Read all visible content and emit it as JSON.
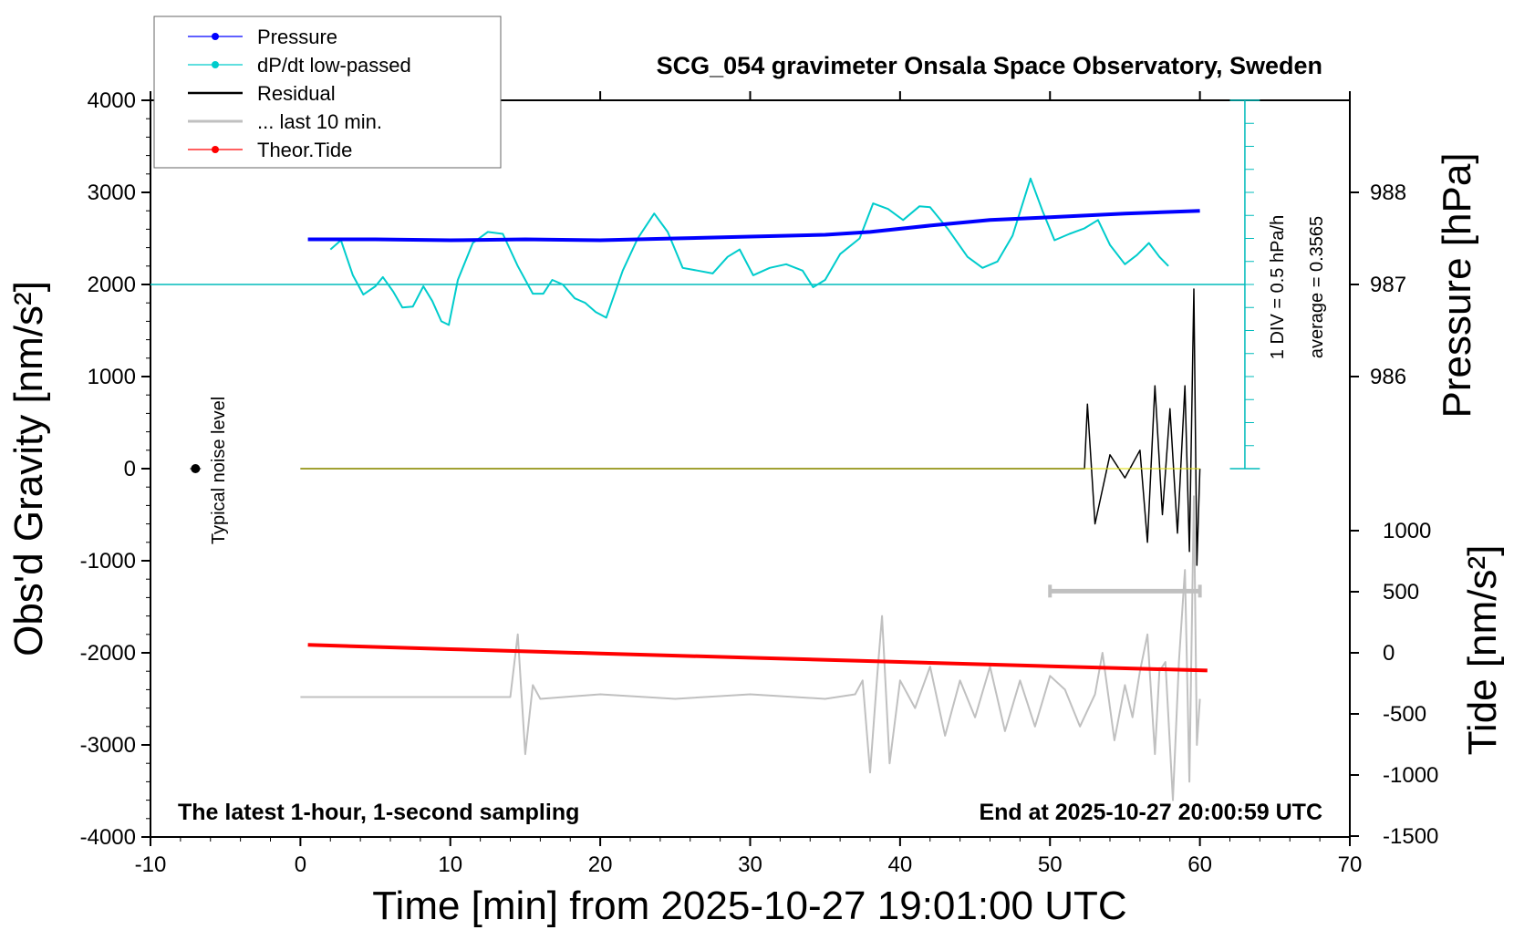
{
  "chart_data": {
    "type": "line",
    "title": "SCG_054 gravimeter Onsala Space Observatory, Sweden",
    "xlabel": "Time [min] from 2025-10-27 19:01:00 UTC",
    "ylabel_left": "Obs'd Gravity [nm/s²]",
    "ylabel_right_top": "Pressure [hPa]",
    "ylabel_right_bottom": "Tide [nm/s²]",
    "xlim": [
      -10,
      70
    ],
    "ylim": [
      -4000,
      4000
    ],
    "x_ticks": [
      "-10",
      "0",
      "10",
      "20",
      "30",
      "40",
      "50",
      "60",
      "70"
    ],
    "y_ticks": [
      "4000",
      "3000",
      "2000",
      "1000",
      "0",
      "-1000",
      "-2000",
      "-3000",
      "-4000"
    ],
    "pressure_ticks": [
      "988",
      "987",
      "986"
    ],
    "tide_ticks": [
      "1000",
      "500",
      "0",
      "-500",
      "-1000",
      "-1500"
    ],
    "annotations": {
      "left_bottom": "The latest 1-hour, 1-second sampling",
      "right_bottom": "End at 2025-10-27 20:00:59 UTC",
      "noise": "Typical noise level",
      "div": "1 DIV = 0.5 hPa/h",
      "average": "average = 0.3565"
    },
    "legend": [
      {
        "name": "Pressure",
        "color": "#0000ff",
        "marker": true
      },
      {
        "name": "dP/dt low-passed",
        "color": "#00cccc",
        "marker": true
      },
      {
        "name": "Residual",
        "color": "#000000",
        "marker": false
      },
      {
        "name": "... last 10 min.",
        "color": "#c0c0c0",
        "marker": false
      },
      {
        "name": "Theor.Tide",
        "color": "#ff0000",
        "marker": true
      }
    ],
    "series": [
      {
        "name": "Pressure",
        "color": "#0000ff",
        "unit": "hPa",
        "x": [
          0.5,
          5,
          10,
          15,
          20,
          25,
          30,
          35,
          38,
          42,
          46,
          50,
          55,
          60
        ],
        "y": [
          987.49,
          987.49,
          987.48,
          987.49,
          987.48,
          987.5,
          987.52,
          987.54,
          987.57,
          987.64,
          987.7,
          987.73,
          987.77,
          987.8
        ]
      },
      {
        "name": "dP/dt low-passed",
        "color": "#00cccc",
        "unit": "nm/s² plot units",
        "x": [
          2,
          2.7,
          3.5,
          4.2,
          5,
          5.5,
          6.2,
          6.8,
          7.5,
          8.2,
          8.8,
          9.4,
          9.9,
          10.5,
          11.5,
          12.5,
          13.5,
          14.5,
          15.5,
          16.2,
          16.8,
          17.5,
          18.3,
          19,
          19.7,
          20.4,
          21.5,
          22.5,
          23.6,
          24.5,
          25.5,
          26.5,
          27.5,
          28.5,
          29.3,
          30.2,
          31.3,
          32.4,
          33.5,
          34.2,
          35,
          36,
          37.3,
          38.2,
          39.2,
          40.2,
          41.3,
          42,
          43.2,
          44.5,
          45.5,
          46.5,
          47.5,
          48.7,
          49.5,
          50.3,
          51.3,
          52.3,
          53.2,
          54,
          55,
          55.8,
          56.6,
          57.3,
          57.9
        ],
        "y": [
          2380,
          2480,
          2100,
          1890,
          1980,
          2080,
          1920,
          1750,
          1760,
          1980,
          1820,
          1600,
          1560,
          2050,
          2450,
          2570,
          2550,
          2200,
          1900,
          1900,
          2050,
          2000,
          1850,
          1800,
          1700,
          1640,
          2150,
          2500,
          2770,
          2570,
          2180,
          2150,
          2120,
          2300,
          2380,
          2100,
          2180,
          2220,
          2150,
          1970,
          2050,
          2330,
          2500,
          2880,
          2820,
          2700,
          2850,
          2840,
          2600,
          2300,
          2180,
          2250,
          2530,
          3150,
          2800,
          2480,
          2550,
          2610,
          2700,
          2430,
          2220,
          2320,
          2450,
          2300,
          2200
        ]
      },
      {
        "name": "Residual",
        "color": "#000000",
        "unit": "nm/s²",
        "x": [
          0,
          52.3,
          52.5,
          53,
          54,
          55,
          56,
          56.5,
          57,
          57.5,
          58,
          58.5,
          59,
          59.3,
          59.6,
          59.8,
          60
        ],
        "y": [
          0,
          0,
          700,
          -600,
          150,
          -100,
          200,
          -800,
          900,
          -500,
          650,
          -700,
          900,
          -900,
          1950,
          -1050,
          0
        ]
      },
      {
        "name": "... last 10 min.",
        "color": "#c0c0c0",
        "unit": "nm/s² plot units",
        "x": [
          0,
          13.5,
          14,
          14.5,
          15,
          15.5,
          16,
          20,
          25,
          30,
          35,
          37,
          37.5,
          38,
          38.5,
          38.8,
          39.3,
          40,
          41,
          42,
          43,
          44,
          45,
          46,
          47,
          48,
          49,
          50,
          51,
          52,
          53,
          53.5,
          54.3,
          55,
          55.5,
          56,
          56.5,
          57,
          57.3,
          57.7,
          58.2,
          58.6,
          59,
          59.3,
          59.6,
          59.8,
          60
        ],
        "y": [
          -2480,
          -2480,
          -2480,
          -1800,
          -3100,
          -2350,
          -2500,
          -2450,
          -2500,
          -2450,
          -2500,
          -2450,
          -2300,
          -3300,
          -2200,
          -1600,
          -3200,
          -2300,
          -2600,
          -2150,
          -2900,
          -2300,
          -2700,
          -2150,
          -2850,
          -2300,
          -2800,
          -2250,
          -2400,
          -2800,
          -2450,
          -2000,
          -2950,
          -2350,
          -2700,
          -2200,
          -1800,
          -3100,
          -2200,
          -2100,
          -3600,
          -2100,
          -1100,
          -3400,
          -300,
          -3000,
          -2500
        ]
      },
      {
        "name": "Theor.Tide",
        "color": "#ff0000",
        "unit": "nm/s²",
        "x": [
          0.5,
          10,
          20,
          30,
          40,
          50,
          60.5
        ],
        "y": [
          65,
          30,
          -5,
          -40,
          -75,
          -110,
          -145
        ]
      }
    ],
    "scale_bar": {
      "x": [
        50,
        60
      ],
      "y": -1330
    },
    "noise_marker": {
      "x": -7,
      "y": 0
    }
  }
}
